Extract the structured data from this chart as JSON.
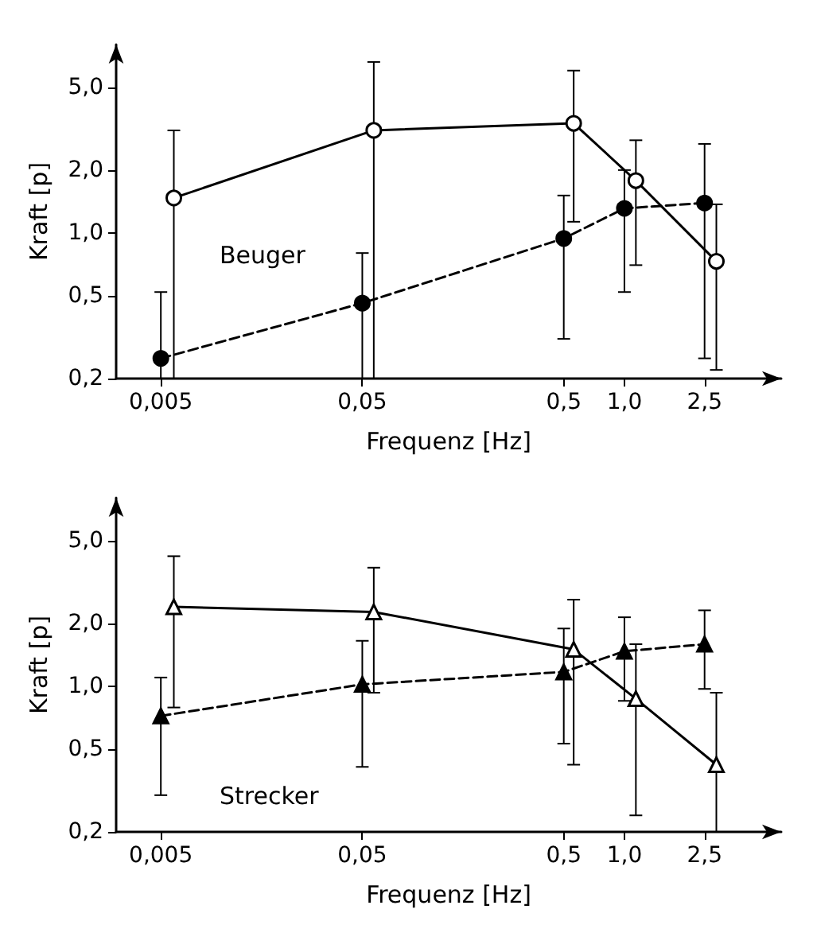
{
  "chart_data": [
    {
      "type": "line",
      "xlabel": "Frequenz [Hz]",
      "ylabel": "Kraft [p]",
      "annotations": [
        "Beuger"
      ],
      "log": "xy",
      "xlim": [
        0.003,
        6
      ],
      "ylim": [
        0.2,
        8
      ],
      "xticks": [
        {
          "value": 0.005,
          "label": "0,005"
        },
        {
          "value": 0.05,
          "label": "0,05"
        },
        {
          "value": 0.5,
          "label": "0,5"
        },
        {
          "value": 1,
          "label": "1,0"
        },
        {
          "value": 2.5,
          "label": "2,5"
        }
      ],
      "yticks": [
        {
          "value": 0.2,
          "label": "0,2"
        },
        {
          "value": 0.5,
          "label": "0,5"
        },
        {
          "value": 1,
          "label": "1,0"
        },
        {
          "value": 2,
          "label": "2,0"
        },
        {
          "value": 5,
          "label": "5,0"
        }
      ],
      "series": [
        {
          "color": "#000000",
          "marker": "circle",
          "line_style": "solid",
          "x": [
            0.0058,
            0.057,
            0.56,
            1.14,
            2.86
          ],
          "values": [
            1.47,
            3.1,
            3.35,
            1.78,
            0.73
          ],
          "errors": [
            [
              0.2,
              3.1
            ],
            [
              0.2,
              6.6
            ],
            [
              1.13,
              6.0
            ],
            [
              0.7,
              2.78
            ],
            [
              0.22,
              1.37
            ]
          ]
        },
        {
          "color": "#000000",
          "marker": "circle",
          "line_style": "dashed",
          "x": [
            0.005,
            0.05,
            0.5,
            1,
            2.5
          ],
          "values": [
            0.25,
            0.46,
            0.94,
            1.31,
            1.39
          ],
          "errors": [
            [
              0.2,
              0.52
            ],
            [
              0.2,
              0.8
            ],
            [
              0.31,
              1.51
            ],
            [
              0.52,
              2.0
            ],
            [
              0.25,
              2.67
            ]
          ]
        }
      ]
    },
    {
      "type": "line",
      "xlabel": "Frequenz [Hz]",
      "ylabel": "Kraft [p]",
      "annotations": [
        "Strecker"
      ],
      "log": "xy",
      "xlim": [
        0.003,
        6
      ],
      "ylim": [
        0.2,
        8
      ],
      "xticks": [
        {
          "value": 0.005,
          "label": "0,005"
        },
        {
          "value": 0.05,
          "label": "0,05"
        },
        {
          "value": 0.5,
          "label": "0,5"
        },
        {
          "value": 1,
          "label": "1,0"
        },
        {
          "value": 2.5,
          "label": "2,5"
        }
      ],
      "yticks": [
        {
          "value": 0.2,
          "label": "0,2"
        },
        {
          "value": 0.5,
          "label": "0,5"
        },
        {
          "value": 1,
          "label": "1,0"
        },
        {
          "value": 2,
          "label": "2,0"
        },
        {
          "value": 5,
          "label": "5,0"
        }
      ],
      "series": [
        {
          "color": "#000000",
          "marker": "triangle",
          "line_style": "solid",
          "x": [
            0.0058,
            0.057,
            0.56,
            1.14,
            2.86
          ],
          "values": [
            2.4,
            2.27,
            1.5,
            0.87,
            0.42
          ],
          "errors": [
            [
              0.79,
              4.2
            ],
            [
              0.93,
              3.7
            ],
            [
              0.42,
              2.6
            ],
            [
              0.24,
              1.59
            ],
            [
              0.2,
              0.93
            ]
          ]
        },
        {
          "color": "#000000",
          "marker": "triangle",
          "line_style": "dashed",
          "x": [
            0.005,
            0.05,
            0.5,
            1,
            2.5
          ],
          "values": [
            0.72,
            1.02,
            1.17,
            1.47,
            1.59
          ],
          "errors": [
            [
              0.3,
              1.1
            ],
            [
              0.41,
              1.65
            ],
            [
              0.53,
              1.89
            ],
            [
              0.85,
              2.14
            ],
            [
              0.97,
              2.31
            ]
          ]
        }
      ]
    }
  ]
}
